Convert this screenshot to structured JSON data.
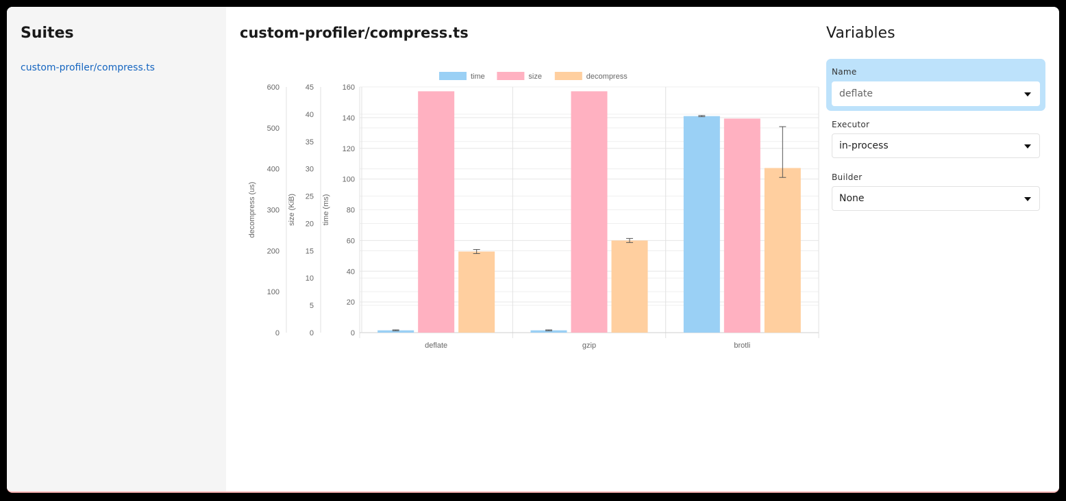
{
  "sidebar": {
    "title": "Suites",
    "items": [
      {
        "label": "custom-profiler/compress.ts"
      }
    ]
  },
  "main": {
    "title": "custom-profiler/compress.ts"
  },
  "variables": {
    "title": "Variables",
    "fields": [
      {
        "label": "Name",
        "value": "deflate"
      },
      {
        "label": "Executor",
        "value": "in-process"
      },
      {
        "label": "Builder",
        "value": "None"
      }
    ]
  },
  "chart_data": {
    "type": "bar",
    "categories": [
      "deflate",
      "gzip",
      "brotli"
    ],
    "legend_position": "top",
    "grid": true,
    "axes": [
      {
        "id": "decompress",
        "label": "decompress (us)",
        "ylim": [
          0,
          600
        ],
        "ticks": [
          0,
          100,
          200,
          300,
          400,
          500,
          600
        ]
      },
      {
        "id": "size",
        "label": "size (KiB)",
        "ylim": [
          0,
          45
        ],
        "ticks": [
          0,
          5,
          10,
          15,
          20,
          25,
          30,
          35,
          40,
          45
        ]
      },
      {
        "id": "time",
        "label": "time (ms)",
        "ylim": [
          0,
          160
        ],
        "ticks": [
          0,
          20,
          40,
          60,
          80,
          100,
          120,
          140,
          160
        ]
      }
    ],
    "series": [
      {
        "name": "time",
        "axis": "time",
        "color": "#9ad0f5",
        "values": [
          1.5,
          1.5,
          141
        ],
        "error": [
          [
            1.2,
            1.8
          ],
          [
            1.2,
            1.8
          ],
          [
            140.6,
            141.4
          ]
        ]
      },
      {
        "name": "size",
        "axis": "size",
        "color": "#ffb1c1",
        "values": [
          44.2,
          44.2,
          39.2
        ],
        "error": null
      },
      {
        "name": "decompress",
        "axis": "decompress",
        "color": "#ffcf9f",
        "values": [
          198,
          225,
          402
        ],
        "error": [
          [
            193,
            203
          ],
          [
            220,
            230
          ],
          [
            379,
            503
          ]
        ]
      }
    ]
  }
}
